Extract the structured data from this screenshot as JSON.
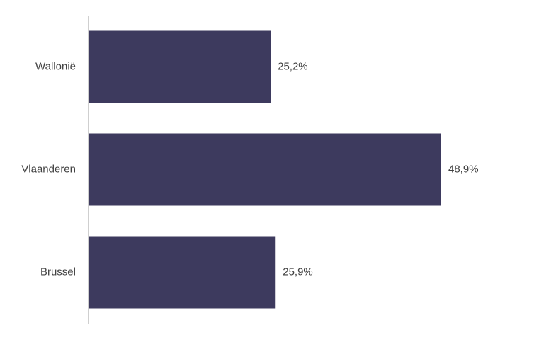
{
  "chart_data": {
    "type": "bar",
    "orientation": "horizontal",
    "categories": [
      "Wallonië",
      "Vlaanderen",
      "Brussel"
    ],
    "values": [
      25.2,
      48.9,
      25.9
    ],
    "value_labels": [
      "25,2%",
      "48,9%",
      "25,9%"
    ],
    "color": "#3d3a5e"
  }
}
